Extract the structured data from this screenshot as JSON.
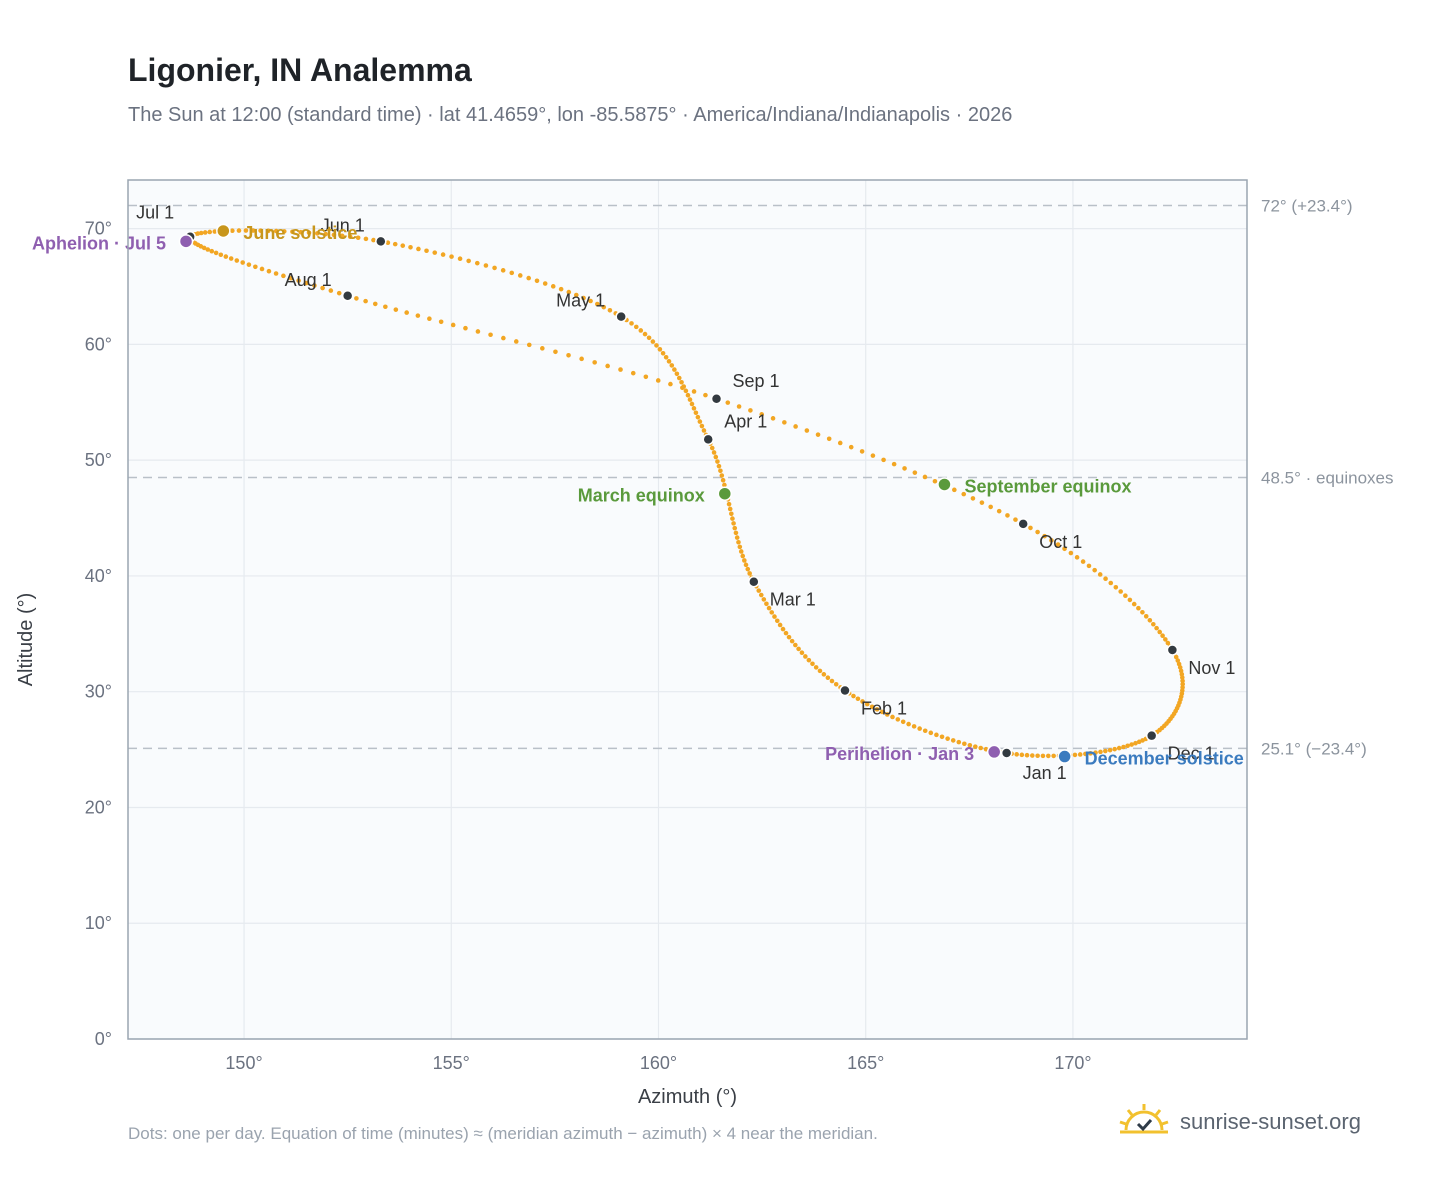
{
  "title": "Ligonier, IN Analemma",
  "subtitle": "The Sun at 12:00 (standard time) · lat 41.4659°, lon -85.5875° · America/Indiana/Indianapolis · 2026",
  "footnote": "Dots: one per day. Equation of time (minutes) ≈ (meridian azimuth − azimuth) × 4 near the meridian.",
  "brand": {
    "name": "sunrise-sunset.org",
    "icon": "sun-logo-icon"
  },
  "colors": {
    "curve": "#f2a623",
    "marker": "#333a40",
    "solstice_june": "#c8961c",
    "solstice_december": "#3b7bbf",
    "equinox": "#5a9a3c",
    "apsis": "#8f5fb0",
    "ref_line": "#b9c0c8",
    "plot_bg": "#f9fbfd",
    "grid": "#e6eaef",
    "frame": "#9aa5b1"
  },
  "chart_data": {
    "type": "scatter",
    "xlabel": "Azimuth (°)",
    "ylabel": "Altitude (°)",
    "xlim": [
      147.2,
      174.2
    ],
    "ylim": [
      0,
      74.2
    ],
    "xticks": [
      150,
      155,
      160,
      165,
      170
    ],
    "yticks": [
      0,
      10,
      20,
      30,
      40,
      50,
      60,
      70
    ],
    "xtick_labels": [
      "150°",
      "155°",
      "160°",
      "165°",
      "170°"
    ],
    "ytick_labels": [
      "0°",
      "10°",
      "20°",
      "30°",
      "40°",
      "50°",
      "60°",
      "70°"
    ],
    "grid": true,
    "ref_lines": [
      {
        "y": 72.0,
        "label": "72° (+23.4°)"
      },
      {
        "y": 48.5,
        "label": "48.5° · equinoxes"
      },
      {
        "y": 25.1,
        "label": "25.1° (−23.4°)"
      }
    ],
    "month_markers": [
      {
        "label": "Jan 1",
        "day": 1,
        "az": 168.4,
        "alt": 24.7
      },
      {
        "label": "Feb 1",
        "day": 32,
        "az": 164.5,
        "alt": 30.1
      },
      {
        "label": "Mar 1",
        "day": 60,
        "az": 162.3,
        "alt": 39.5
      },
      {
        "label": "Apr 1",
        "day": 91,
        "az": 161.2,
        "alt": 51.8
      },
      {
        "label": "May 1",
        "day": 121,
        "az": 159.1,
        "alt": 62.4
      },
      {
        "label": "Jun 1",
        "day": 152,
        "az": 153.3,
        "alt": 68.9
      },
      {
        "label": "Jul 1",
        "day": 182,
        "az": 148.7,
        "alt": 69.3
      },
      {
        "label": "Aug 1",
        "day": 213,
        "az": 152.5,
        "alt": 64.2
      },
      {
        "label": "Sep 1",
        "day": 244,
        "az": 161.4,
        "alt": 55.3
      },
      {
        "label": "Oct 1",
        "day": 274,
        "az": 168.8,
        "alt": 44.5
      },
      {
        "label": "Nov 1",
        "day": 305,
        "az": 172.4,
        "alt": 33.6
      },
      {
        "label": "Dec 1",
        "day": 335,
        "az": 171.9,
        "alt": 26.2
      }
    ],
    "events": [
      {
        "label": "June solstice",
        "kind": "solstice_june",
        "day": 172,
        "az": 149.5,
        "alt": 69.8
      },
      {
        "label": "December solstice",
        "kind": "solstice_december",
        "day": 355,
        "az": 169.8,
        "alt": 24.4
      },
      {
        "label": "March equinox",
        "kind": "equinox",
        "day": 79,
        "az": 161.6,
        "alt": 47.1
      },
      {
        "label": "September equinox",
        "kind": "equinox",
        "day": 265,
        "az": 166.9,
        "alt": 47.9
      },
      {
        "label": "Aphelion · Jul 5",
        "kind": "apsis",
        "day": 186,
        "az": 148.6,
        "alt": 68.9
      },
      {
        "label": "Perihelion · Jan 3",
        "kind": "apsis",
        "day": 3,
        "az": 168.1,
        "alt": 24.8
      }
    ]
  }
}
